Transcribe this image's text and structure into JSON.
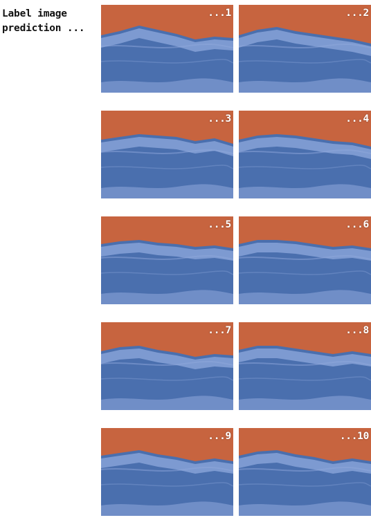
{
  "caption": {
    "line1": "Label image",
    "line2": "prediction ..."
  },
  "tiles": [
    {
      "label": "...1"
    },
    {
      "label": "...2"
    },
    {
      "label": "...3"
    },
    {
      "label": "...4"
    },
    {
      "label": "...5"
    },
    {
      "label": "...6"
    },
    {
      "label": "...7"
    },
    {
      "label": "...8"
    },
    {
      "label": "...9"
    },
    {
      "label": "...10"
    }
  ],
  "colors": {
    "sand": "#c7643f",
    "water": "#4a6fae",
    "foam": "#8fa8dc"
  }
}
